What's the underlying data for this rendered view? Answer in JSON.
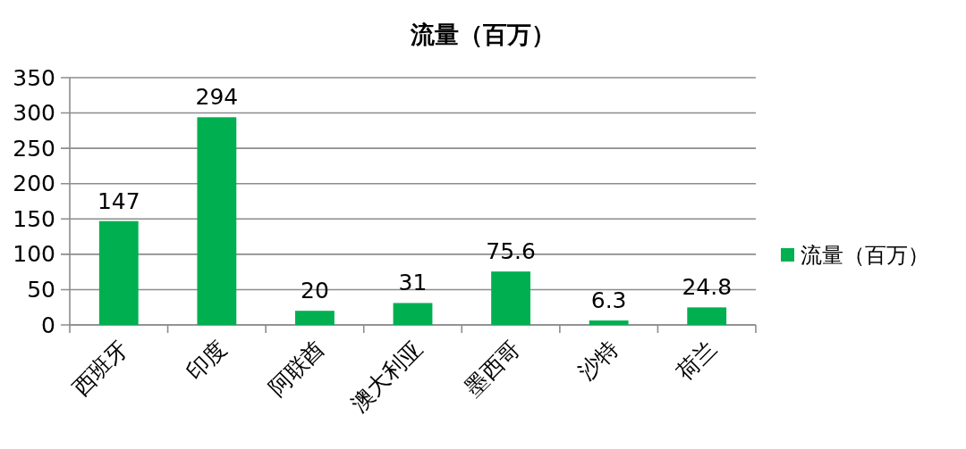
{
  "chart_data": {
    "type": "bar",
    "title": "流量（百万）",
    "categories": [
      "西班牙",
      "印度",
      "阿联酋",
      "澳大利亚",
      "墨西哥",
      "沙特",
      "荷兰"
    ],
    "series": [
      {
        "name": "流量（百万）",
        "color": "#00b050",
        "values": [
          147,
          294,
          20,
          31,
          75.6,
          6.3,
          24.8
        ]
      }
    ],
    "ylim": [
      0,
      350
    ],
    "yticks": [
      0,
      50,
      100,
      150,
      200,
      250,
      300,
      350
    ],
    "grid": "y",
    "legend": "right",
    "data_labels": true
  }
}
